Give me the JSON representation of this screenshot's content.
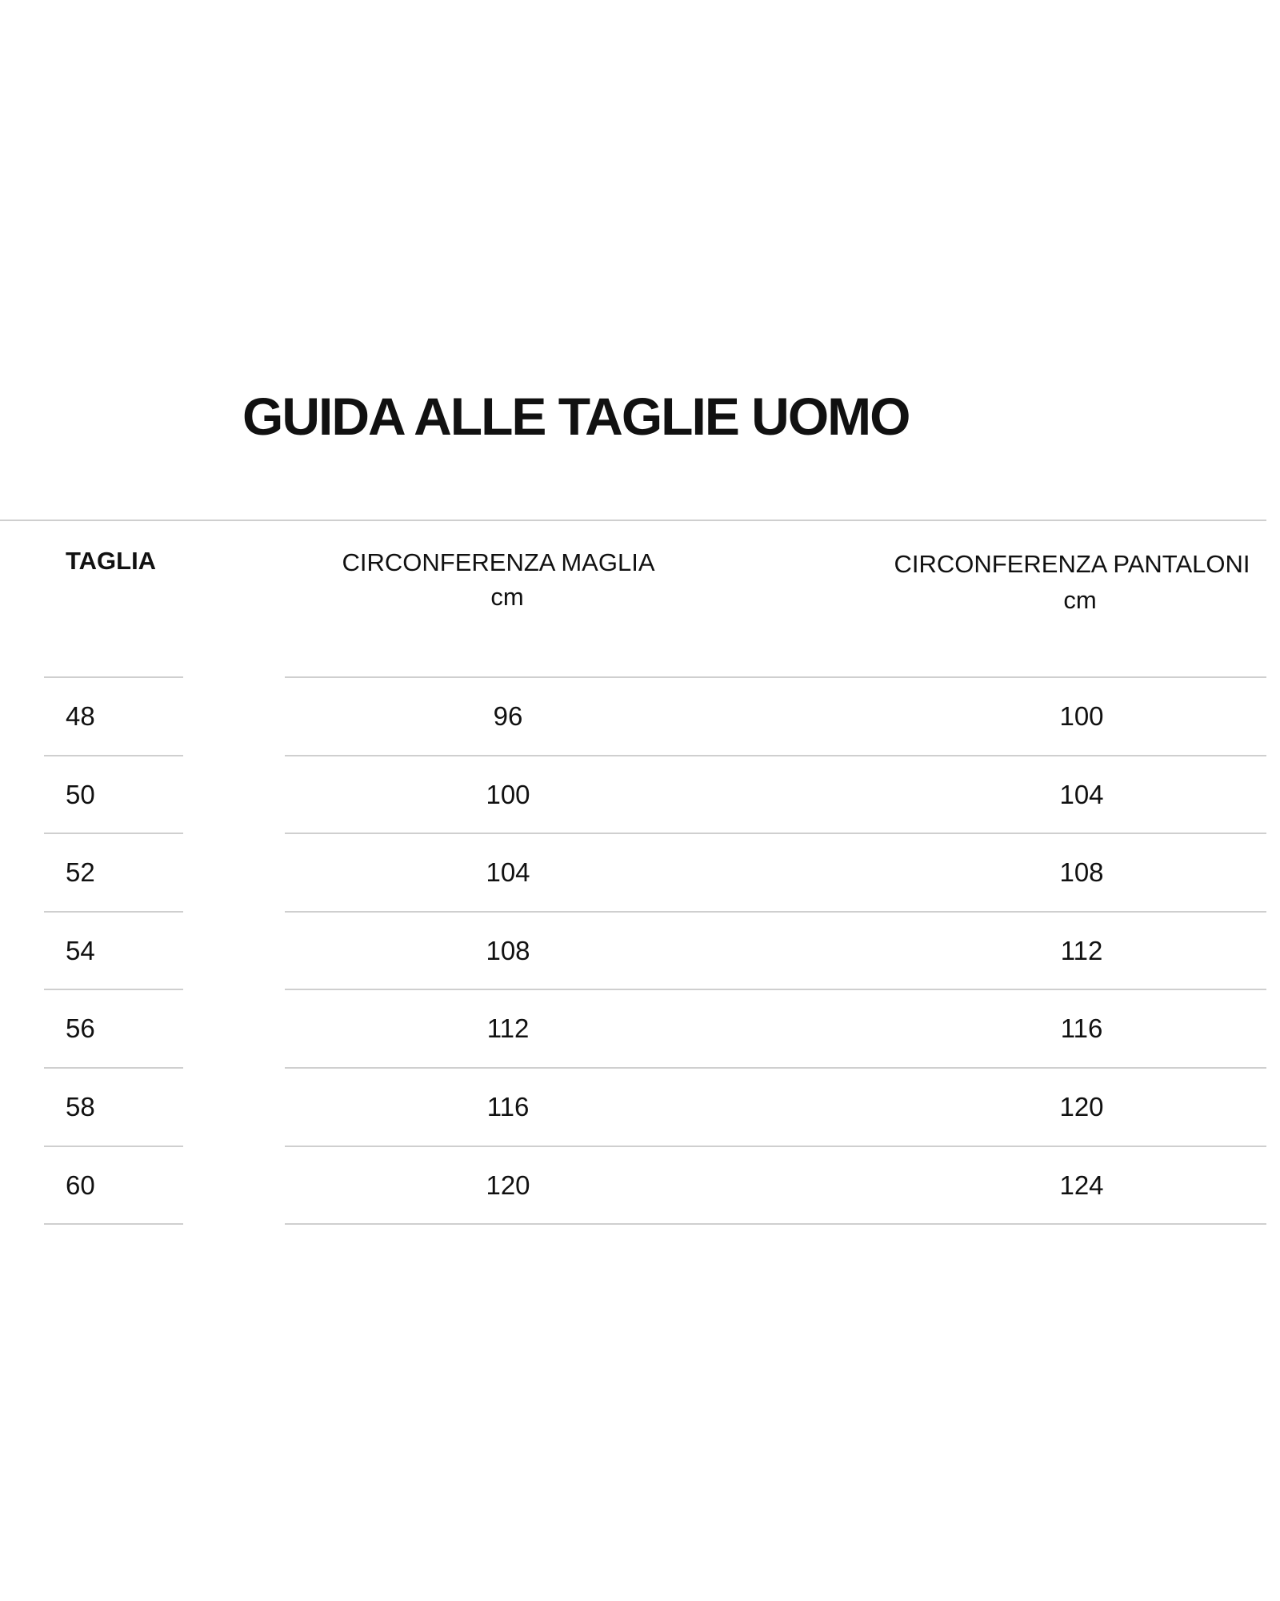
{
  "title": "GUIDA ALLE TAGLIE UOMO",
  "table": {
    "headers": [
      {
        "label": "TAGLIA",
        "unit": ""
      },
      {
        "label": "CIRCONFERENZA MAGLIA",
        "unit": "cm"
      },
      {
        "label": "CIRCONFERENZA PANTALONI",
        "unit": "cm"
      }
    ],
    "rows": [
      [
        "48",
        "96",
        "100"
      ],
      [
        "50",
        "100",
        "104"
      ],
      [
        "52",
        "104",
        "108"
      ],
      [
        "54",
        "108",
        "112"
      ],
      [
        "56",
        "112",
        "116"
      ],
      [
        "58",
        "116",
        "120"
      ],
      [
        "60",
        "120",
        "124"
      ]
    ]
  }
}
